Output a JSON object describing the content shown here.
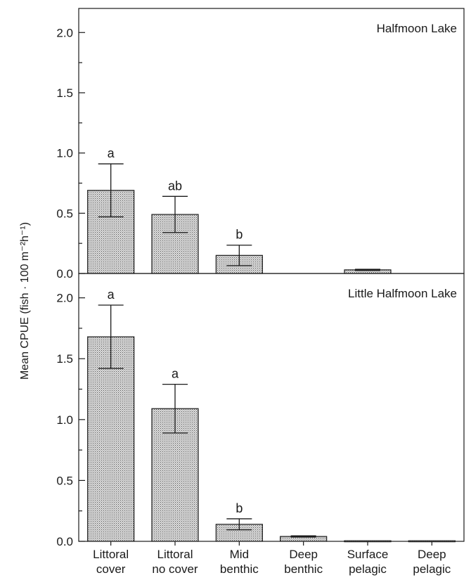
{
  "chart_data": {
    "type": "bar",
    "categories": [
      [
        "Littoral",
        "cover"
      ],
      [
        "Littoral",
        "no cover"
      ],
      [
        "Mid",
        "benthic"
      ],
      [
        "Deep",
        "benthic"
      ],
      [
        "Surface",
        "pelagic"
      ],
      [
        "Deep",
        "pelagic"
      ]
    ],
    "ylabel": "Mean CPUE (fish · 100 m⁻²h⁻¹)",
    "panels": [
      {
        "title": "Halfmoon Lake",
        "ylim": [
          0,
          2.2
        ],
        "yticks": [
          "0.0",
          "0.5",
          "1.0",
          "1.5",
          "2.0"
        ],
        "values": [
          0.69,
          0.49,
          0.15,
          0,
          0.03,
          0
        ],
        "errors": [
          0.22,
          0.15,
          0.085,
          0,
          0.005,
          0
        ],
        "letters": [
          "a",
          "ab",
          "b",
          "",
          "",
          ""
        ]
      },
      {
        "title": "Little Halfmoon Lake",
        "ylim": [
          0,
          2.2
        ],
        "yticks": [
          "0.0",
          "0.5",
          "1.0",
          "1.5",
          "2.0"
        ],
        "values": [
          1.68,
          1.09,
          0.14,
          0.04,
          0.005,
          0.005
        ],
        "errors": [
          0.26,
          0.2,
          0.045,
          0.005,
          0,
          0
        ],
        "letters": [
          "a",
          "a",
          "b",
          "",
          "",
          ""
        ]
      }
    ]
  },
  "colors": {
    "bar_fill": "#c9c9c9",
    "stroke": "#1a1a1a"
  }
}
